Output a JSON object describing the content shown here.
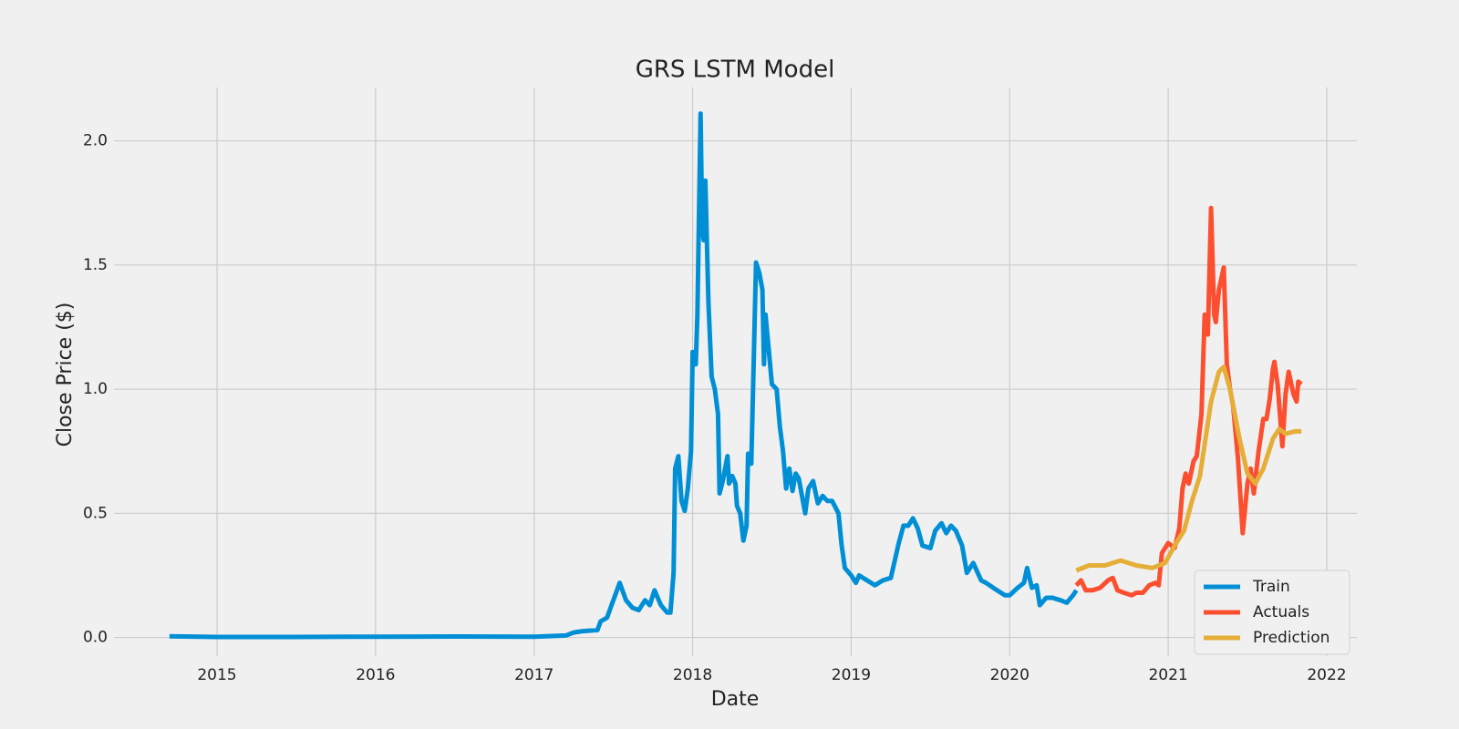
{
  "chart_data": {
    "type": "line",
    "title": "GRS LSTM Model",
    "x_label": "Date",
    "y_label": "Close Price ($)",
    "xlim": [
      2014.35,
      2022.19
    ],
    "xticks": [
      2015,
      2016,
      2017,
      2018,
      2019,
      2020,
      2021,
      2022
    ],
    "ylim": [
      -0.075,
      2.215
    ],
    "yticks": [
      {
        "value": 0,
        "label": "0.0"
      },
      {
        "value": 0.5,
        "label": "0.5"
      },
      {
        "value": 1,
        "label": "1.0"
      },
      {
        "value": 1.5,
        "label": "1.5"
      },
      {
        "value": 2,
        "label": "2.0"
      }
    ],
    "grid": true,
    "legend": "lower right",
    "series": [
      {
        "name": "Train",
        "color": "#008fd5",
        "x": [
          2014.7,
          2015.0,
          2015.5,
          2016.0,
          2016.5,
          2017.0,
          2017.2,
          2017.25,
          2017.3,
          2017.4,
          2017.42,
          2017.46,
          2017.5,
          2017.54,
          2017.58,
          2017.62,
          2017.66,
          2017.7,
          2017.73,
          2017.76,
          2017.8,
          2017.84,
          2017.86,
          2017.88,
          2017.89,
          2017.91,
          2017.93,
          2017.95,
          2017.97,
          2017.99,
          2018.0,
          2018.02,
          2018.03,
          2018.05,
          2018.06,
          2018.07,
          2018.08,
          2018.1,
          2018.12,
          2018.14,
          2018.16,
          2018.17,
          2018.19,
          2018.22,
          2018.23,
          2018.25,
          2018.27,
          2018.28,
          2018.3,
          2018.32,
          2018.34,
          2018.35,
          2018.37,
          2018.4,
          2018.42,
          2018.44,
          2018.45,
          2018.46,
          2018.5,
          2018.53,
          2018.55,
          2018.57,
          2018.59,
          2018.61,
          2018.63,
          2018.65,
          2018.67,
          2018.71,
          2018.73,
          2018.76,
          2018.79,
          2018.82,
          2018.85,
          2018.88,
          2018.92,
          2018.94,
          2018.96,
          2019.0,
          2019.03,
          2019.05,
          2019.1,
          2019.15,
          2019.2,
          2019.25,
          2019.3,
          2019.33,
          2019.36,
          2019.39,
          2019.42,
          2019.45,
          2019.5,
          2019.53,
          2019.57,
          2019.6,
          2019.63,
          2019.66,
          2019.7,
          2019.73,
          2019.77,
          2019.82,
          2019.85,
          2019.92,
          2019.97,
          2020.0,
          2020.05,
          2020.09,
          2020.11,
          2020.14,
          2020.17,
          2020.19,
          2020.23,
          2020.27,
          2020.32,
          2020.36,
          2020.4,
          2020.42
        ],
        "values": [
          0.005,
          0.002,
          0.002,
          0.003,
          0.004,
          0.003,
          0.008,
          0.02,
          0.025,
          0.03,
          0.065,
          0.08,
          0.15,
          0.22,
          0.15,
          0.12,
          0.11,
          0.15,
          0.13,
          0.19,
          0.13,
          0.1,
          0.1,
          0.26,
          0.68,
          0.73,
          0.55,
          0.51,
          0.6,
          0.75,
          1.15,
          1.1,
          1.3,
          2.11,
          1.65,
          1.6,
          1.84,
          1.35,
          1.05,
          1.0,
          0.9,
          0.58,
          0.63,
          0.73,
          0.62,
          0.65,
          0.62,
          0.53,
          0.5,
          0.39,
          0.45,
          0.74,
          0.7,
          1.51,
          1.47,
          1.4,
          1.1,
          1.3,
          1.02,
          1.0,
          0.85,
          0.75,
          0.6,
          0.68,
          0.59,
          0.66,
          0.64,
          0.5,
          0.6,
          0.63,
          0.54,
          0.57,
          0.55,
          0.55,
          0.5,
          0.37,
          0.28,
          0.25,
          0.22,
          0.25,
          0.23,
          0.21,
          0.23,
          0.24,
          0.38,
          0.45,
          0.45,
          0.48,
          0.44,
          0.37,
          0.36,
          0.43,
          0.46,
          0.42,
          0.45,
          0.43,
          0.37,
          0.26,
          0.3,
          0.23,
          0.22,
          0.19,
          0.17,
          0.17,
          0.2,
          0.22,
          0.28,
          0.2,
          0.21,
          0.13,
          0.16,
          0.16,
          0.15,
          0.14,
          0.17,
          0.19
        ]
      },
      {
        "name": "Actuals",
        "color": "#fc4f30",
        "x": [
          2020.42,
          2020.45,
          2020.48,
          2020.52,
          2020.57,
          2020.62,
          2020.65,
          2020.68,
          2020.72,
          2020.77,
          2020.8,
          2020.84,
          2020.88,
          2020.92,
          2020.94,
          2020.96,
          2021.0,
          2021.04,
          2021.07,
          2021.09,
          2021.11,
          2021.13,
          2021.16,
          2021.18,
          2021.21,
          2021.23,
          2021.25,
          2021.27,
          2021.29,
          2021.3,
          2021.32,
          2021.35,
          2021.37,
          2021.39,
          2021.41,
          2021.44,
          2021.47,
          2021.5,
          2021.52,
          2021.54,
          2021.57,
          2021.6,
          2021.62,
          2021.64,
          2021.66,
          2021.67,
          2021.69,
          2021.72,
          2021.74,
          2021.76,
          2021.79,
          2021.81,
          2021.82,
          2021.84
        ],
        "values": [
          0.21,
          0.23,
          0.19,
          0.19,
          0.2,
          0.23,
          0.24,
          0.19,
          0.18,
          0.17,
          0.18,
          0.18,
          0.21,
          0.22,
          0.21,
          0.34,
          0.38,
          0.36,
          0.44,
          0.6,
          0.66,
          0.62,
          0.71,
          0.73,
          0.9,
          1.3,
          1.22,
          1.73,
          1.3,
          1.27,
          1.4,
          1.49,
          1.1,
          1.0,
          0.93,
          0.72,
          0.42,
          0.62,
          0.68,
          0.58,
          0.75,
          0.88,
          0.88,
          0.96,
          1.08,
          1.11,
          1.02,
          0.77,
          0.98,
          1.07,
          0.98,
          0.95,
          1.03,
          1.02
        ]
      },
      {
        "name": "Prediction",
        "color": "#e5ae38",
        "x": [
          2020.42,
          2020.5,
          2020.6,
          2020.7,
          2020.8,
          2020.9,
          2020.98,
          2021.05,
          2021.1,
          2021.15,
          2021.2,
          2021.27,
          2021.32,
          2021.35,
          2021.39,
          2021.45,
          2021.5,
          2021.55,
          2021.6,
          2021.66,
          2021.7,
          2021.74,
          2021.8,
          2021.84
        ],
        "values": [
          0.27,
          0.29,
          0.29,
          0.31,
          0.29,
          0.28,
          0.3,
          0.38,
          0.43,
          0.55,
          0.65,
          0.95,
          1.07,
          1.09,
          1.0,
          0.8,
          0.66,
          0.62,
          0.68,
          0.8,
          0.84,
          0.82,
          0.83,
          0.83
        ]
      }
    ]
  }
}
